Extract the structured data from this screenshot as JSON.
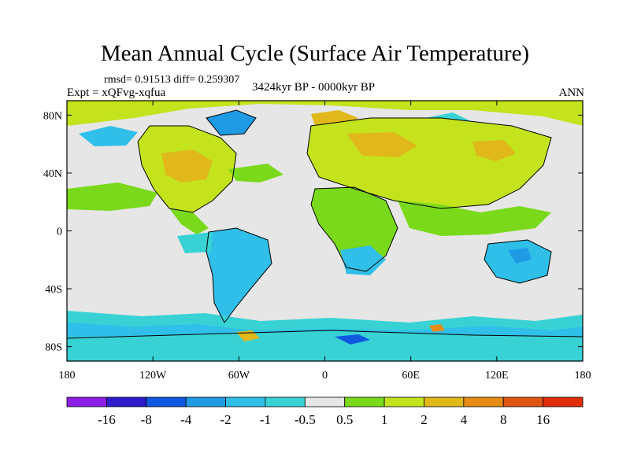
{
  "title": "Mean Annual Cycle (Surface Air Temperature)",
  "stats": "rmsd= 0.91513 diff= 0.259307",
  "experiment": "Expt = xQFvg-xqfua",
  "period": "3424kyr BP - 0000kyr BP",
  "season": "ANN",
  "axes": {
    "x_ticks": [
      {
        "value": -180,
        "label": "180"
      },
      {
        "value": -120,
        "label": "120W"
      },
      {
        "value": -60,
        "label": "60W"
      },
      {
        "value": 0,
        "label": "0"
      },
      {
        "value": 60,
        "label": "60E"
      },
      {
        "value": 120,
        "label": "120E"
      },
      {
        "value": 180,
        "label": "180"
      }
    ],
    "y_ticks": [
      {
        "value": 80,
        "label": "80N"
      },
      {
        "value": 40,
        "label": "40N"
      },
      {
        "value": 0,
        "label": "0"
      },
      {
        "value": -40,
        "label": "40S"
      },
      {
        "value": -80,
        "label": "80S"
      }
    ],
    "lon_range": [
      -180,
      180
    ],
    "lat_range": [
      -90,
      90
    ]
  },
  "colorbar": {
    "colors": [
      "#8c1fe6",
      "#2f1acc",
      "#0f58e0",
      "#1f9be6",
      "#2fbfe8",
      "#38d2d4",
      "#e6e6e6",
      "#7ad91a",
      "#c4e31d",
      "#e0b81a",
      "#e68c14",
      "#e05514",
      "#e02e0a"
    ],
    "labels": [
      "-16",
      "-8",
      "-4",
      "-2",
      "-1",
      "-0.5",
      "0.5",
      "1",
      "2",
      "4",
      "8",
      "16"
    ]
  }
}
